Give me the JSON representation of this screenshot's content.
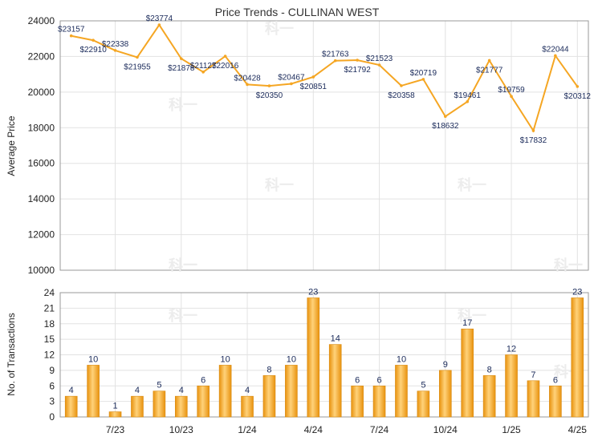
{
  "chart_data": [
    {
      "type": "line",
      "title": "Price Trends - CULLINAN WEST",
      "ylabel": "Average Price",
      "ylim": [
        10000,
        24000
      ],
      "yticks": [
        10000,
        12000,
        14000,
        16000,
        18000,
        20000,
        22000,
        24000
      ],
      "grid": true,
      "line_color": "#f5a623",
      "series": [
        {
          "values": [
            23157,
            22910,
            22338,
            21955,
            23774,
            21878,
            21127,
            22016,
            20428,
            20350,
            20467,
            20851,
            21763,
            21792,
            21523,
            20358,
            20719,
            18632,
            19461,
            21777,
            19759,
            17832,
            22044,
            20312
          ],
          "labels": [
            "$23157",
            "$22910",
            "$22338",
            "$21955",
            "$23774",
            "$21878",
            "$21127",
            "$22016",
            "$20428",
            "$20350",
            "$20467",
            "$20851",
            "$21763",
            "$21792",
            "$21523",
            "$20358",
            "$20719",
            "$18632",
            "$19461",
            "$21777",
            "$19759",
            "$17832",
            "$22044",
            "$20312"
          ]
        }
      ]
    },
    {
      "type": "bar",
      "ylabel": "No. of Transactions",
      "ylim": [
        0,
        24
      ],
      "yticks": [
        0,
        3,
        6,
        9,
        12,
        15,
        18,
        21,
        24
      ],
      "grid": true,
      "bar_color": "#f5a623",
      "xtick_labels": [
        "7/23",
        "10/23",
        "1/24",
        "4/24",
        "7/24",
        "10/24",
        "1/25",
        "4/25"
      ],
      "series": [
        {
          "values": [
            4,
            10,
            1,
            4,
            5,
            4,
            6,
            10,
            4,
            8,
            10,
            23,
            14,
            6,
            6,
            10,
            5,
            9,
            17,
            8,
            12,
            7,
            6,
            23
          ]
        }
      ]
    }
  ],
  "watermark": "科一"
}
